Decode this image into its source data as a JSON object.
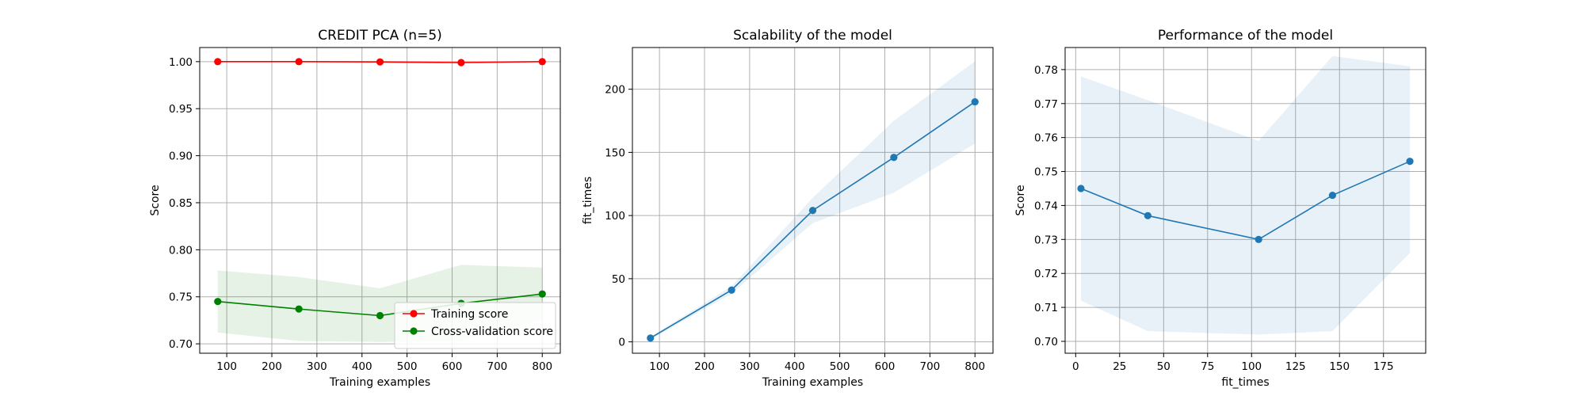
{
  "chart_data": [
    {
      "type": "line",
      "title": "CREDIT PCA (n=5)",
      "xlabel": "Training examples",
      "ylabel": "Score",
      "xlim": [
        40,
        840
      ],
      "ylim": [
        0.69,
        1.015
      ],
      "xticks": [
        100,
        200,
        300,
        400,
        500,
        600,
        700,
        800
      ],
      "yticks": [
        0.7,
        0.75,
        0.8,
        0.85,
        0.9,
        0.95,
        1.0
      ],
      "ytick_labels": [
        "0.70",
        "0.75",
        "0.80",
        "0.85",
        "0.90",
        "0.95",
        "1.00"
      ],
      "grid": true,
      "legend": "lower-right",
      "x": [
        80,
        260,
        440,
        620,
        800
      ],
      "series": [
        {
          "name": "Training score",
          "color": "#ff0000",
          "values": [
            1.0,
            1.0,
            0.9997,
            0.999,
            1.0
          ],
          "band_lower": [
            0.9995,
            0.9995,
            0.999,
            0.998,
            0.9995
          ],
          "band_upper": [
            1.0005,
            1.0005,
            1.0,
            1.0,
            1.0005
          ]
        },
        {
          "name": "Cross-validation score",
          "color": "#008000",
          "values": [
            0.745,
            0.737,
            0.73,
            0.743,
            0.753
          ],
          "band_lower": [
            0.712,
            0.703,
            0.702,
            0.703,
            0.726
          ],
          "band_upper": [
            0.778,
            0.771,
            0.759,
            0.784,
            0.781
          ]
        }
      ]
    },
    {
      "type": "line",
      "title": "Scalability of the model",
      "xlabel": "Training examples",
      "ylabel": "fit_times",
      "xlim": [
        40,
        840
      ],
      "ylim": [
        -9,
        233
      ],
      "xticks": [
        100,
        200,
        300,
        400,
        500,
        600,
        700,
        800
      ],
      "yticks": [
        0,
        50,
        100,
        150,
        200
      ],
      "ytick_labels": [
        "0",
        "50",
        "100",
        "150",
        "200"
      ],
      "grid": true,
      "x": [
        80,
        260,
        440,
        620,
        800
      ],
      "series": [
        {
          "color": "#1f77b4",
          "values": [
            3,
            41,
            104,
            146,
            190
          ],
          "band_lower": [
            2,
            38,
            94,
            118,
            157
          ],
          "band_upper": [
            4,
            44,
            114,
            175,
            222
          ]
        }
      ]
    },
    {
      "type": "line",
      "title": "Performance of the model",
      "xlabel": "fit_times",
      "ylabel": "Score",
      "xlim": [
        -6,
        199
      ],
      "ylim": [
        0.6965,
        0.7865
      ],
      "xticks": [
        0,
        25,
        50,
        75,
        100,
        125,
        150,
        175
      ],
      "yticks": [
        0.7,
        0.71,
        0.72,
        0.73,
        0.74,
        0.75,
        0.76,
        0.77,
        0.78
      ],
      "ytick_labels": [
        "0.70",
        "0.71",
        "0.72",
        "0.73",
        "0.74",
        "0.75",
        "0.76",
        "0.77",
        "0.78"
      ],
      "grid": true,
      "x": [
        3,
        41,
        104,
        146,
        190
      ],
      "series": [
        {
          "color": "#1f77b4",
          "values": [
            0.745,
            0.737,
            0.73,
            0.743,
            0.753
          ],
          "band_lower": [
            0.712,
            0.703,
            0.702,
            0.703,
            0.726
          ],
          "band_upper": [
            0.778,
            0.771,
            0.759,
            0.784,
            0.781
          ]
        }
      ]
    }
  ]
}
